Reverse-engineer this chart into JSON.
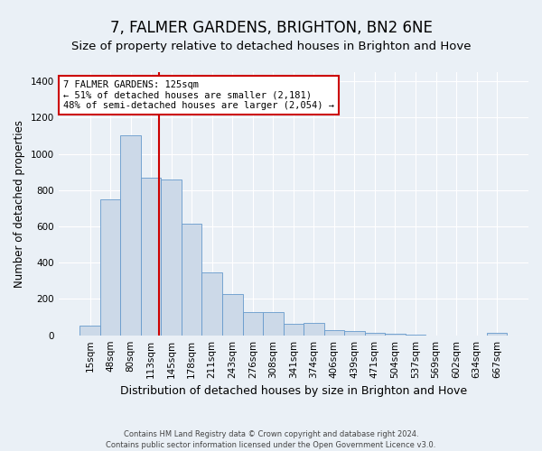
{
  "title": "7, FALMER GARDENS, BRIGHTON, BN2 6NE",
  "subtitle": "Size of property relative to detached houses in Brighton and Hove",
  "xlabel": "Distribution of detached houses by size in Brighton and Hove",
  "ylabel": "Number of detached properties",
  "categories": [
    "15sqm",
    "48sqm",
    "80sqm",
    "113sqm",
    "145sqm",
    "178sqm",
    "211sqm",
    "243sqm",
    "276sqm",
    "308sqm",
    "341sqm",
    "374sqm",
    "406sqm",
    "439sqm",
    "471sqm",
    "504sqm",
    "537sqm",
    "569sqm",
    "602sqm",
    "634sqm",
    "667sqm"
  ],
  "bar_heights": [
    52,
    750,
    1100,
    870,
    860,
    615,
    345,
    225,
    130,
    130,
    62,
    68,
    30,
    22,
    15,
    8,
    2,
    0,
    0,
    0,
    12
  ],
  "bar_color": "#ccd9e8",
  "bar_edge_color": "#6699cc",
  "vline_color": "#cc0000",
  "vline_index": 3.375,
  "annotation_text": "7 FALMER GARDENS: 125sqm\n← 51% of detached houses are smaller (2,181)\n48% of semi-detached houses are larger (2,054) →",
  "annotation_box_facecolor": "#ffffff",
  "annotation_box_edgecolor": "#cc0000",
  "ylim": [
    0,
    1450
  ],
  "yticks": [
    0,
    200,
    400,
    600,
    800,
    1000,
    1200,
    1400
  ],
  "footer1": "Contains HM Land Registry data © Crown copyright and database right 2024.",
  "footer2": "Contains public sector information licensed under the Open Government Licence v3.0.",
  "bg_color": "#eaf0f6",
  "plot_bg": "#eaf0f6",
  "grid_color": "#ffffff",
  "title_fontsize": 12,
  "subtitle_fontsize": 9.5,
  "ylabel_fontsize": 8.5,
  "xlabel_fontsize": 9,
  "tick_fontsize": 7.5,
  "annotation_fontsize": 7.5,
  "footer_fontsize": 6
}
